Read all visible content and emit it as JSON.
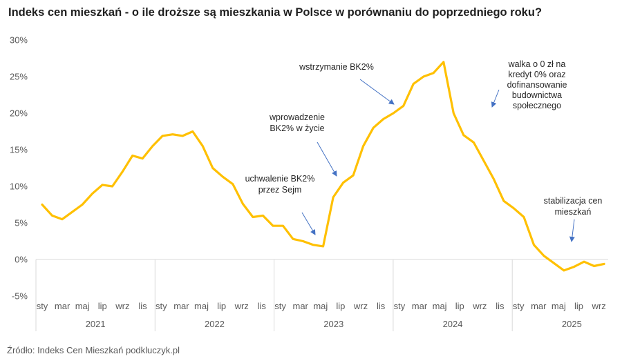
{
  "chart_data": {
    "type": "line",
    "title": "Indeks cen mieszkań - o ile droższe są mieszkania w Polsce w porównaniu do poprzedniego roku?",
    "source": "Źródło: Indeks Cen Mieszkań podkluczyk.pl",
    "ylim": [
      -5,
      30
    ],
    "y_ticks": [
      "30%",
      "25%",
      "20%",
      "15%",
      "10%",
      "5%",
      "0%",
      "-5%"
    ],
    "y_tick_values": [
      30,
      25,
      20,
      15,
      10,
      5,
      0,
      -5
    ],
    "x_tick_labels": [
      "sty",
      "mar",
      "maj",
      "lip",
      "wrz",
      "lis",
      "sty",
      "mar",
      "maj",
      "lip",
      "wrz",
      "lis",
      "sty",
      "mar",
      "maj",
      "lip",
      "wrz",
      "lis",
      "sty",
      "mar",
      "maj",
      "lip",
      "wrz",
      "lis",
      "sty",
      "mar",
      "maj",
      "lip",
      "wrz"
    ],
    "years": [
      "2021",
      "2022",
      "2023",
      "2024",
      "2025"
    ],
    "grid": false,
    "line_color": "#FFC000",
    "series": [
      {
        "values": [
          7.5,
          6.0,
          5.5,
          6.5,
          7.5,
          9.0,
          10.2,
          10.0,
          12.0,
          14.2,
          13.8,
          15.5,
          16.9,
          17.1,
          16.9,
          17.5,
          15.5,
          12.5,
          11.3,
          10.3,
          7.6,
          5.8,
          6.0,
          4.6,
          4.6,
          2.8,
          2.5,
          2.0,
          1.8,
          8.5,
          10.5,
          11.5,
          15.5,
          18.0,
          19.2,
          20.0,
          21.0,
          24.0,
          25.0,
          25.5,
          27.0,
          20.0,
          17.0,
          16.0,
          13.5,
          11.0,
          8.0,
          7.0,
          5.8,
          2.0,
          0.5,
          -0.5,
          -1.5,
          -1.0,
          -0.3,
          -0.9,
          -0.6
        ]
      }
    ],
    "annotations": [
      {
        "lines": [
          "uchwalenie BK2%",
          "przez Sejm"
        ]
      },
      {
        "lines": [
          "wprowadzenie",
          "BK2% w życie"
        ]
      },
      {
        "lines": [
          "wstrzymanie BK2%"
        ]
      },
      {
        "lines": [
          "walka o 0 zł na",
          "kredyt 0% oraz",
          "dofinansowanie",
          "budownictwa",
          "społecznego"
        ]
      },
      {
        "lines": [
          "stabilizacja cen",
          "mieszkań"
        ]
      }
    ],
    "arrow_color": "#4472C4",
    "axis_color": "#d9d9d9",
    "text_color": "#595959"
  }
}
